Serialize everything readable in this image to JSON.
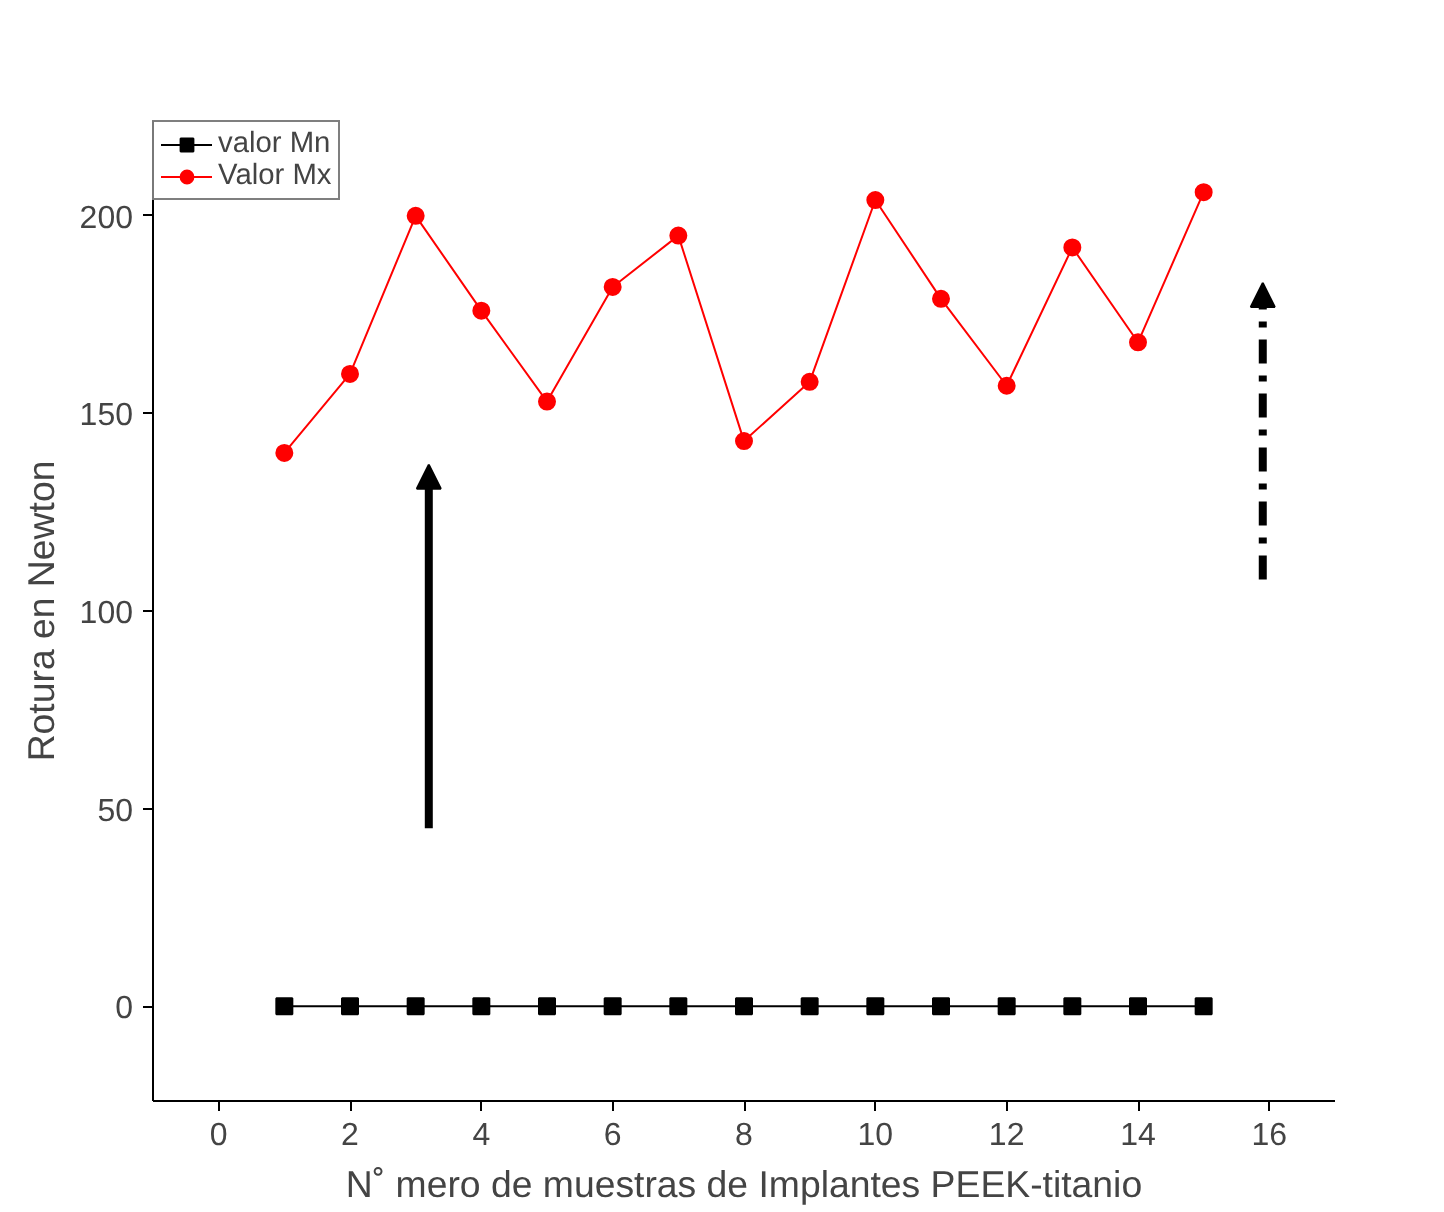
{
  "chart_data": {
    "type": "line",
    "xlabel": "N˚ mero de muestras de Implantes PEEK-titanio",
    "ylabel": "Rotura en Newton",
    "x": [
      1,
      2,
      3,
      4,
      5,
      6,
      7,
      8,
      9,
      10,
      11,
      12,
      13,
      14,
      15
    ],
    "series": [
      {
        "name": "valor Mn",
        "color": "#000000",
        "marker": "square",
        "values": [
          0,
          0,
          0,
          0,
          0,
          0,
          0,
          0,
          0,
          0,
          0,
          0,
          0,
          0,
          0
        ]
      },
      {
        "name": "Valor Mx",
        "color": "#ff0000",
        "marker": "circle",
        "values": [
          140,
          160,
          200,
          176,
          153,
          182,
          195,
          143,
          158,
          204,
          179,
          157,
          192,
          168,
          206
        ]
      }
    ],
    "xlim": [
      -1,
      17
    ],
    "xticks": [
      0,
      2,
      4,
      6,
      8,
      10,
      12,
      14,
      16
    ],
    "ylim": [
      -24,
      224
    ],
    "yticks": [
      0,
      50,
      100,
      150,
      200
    ],
    "grid": false,
    "legend": "top left",
    "line_style": "solid"
  }
}
